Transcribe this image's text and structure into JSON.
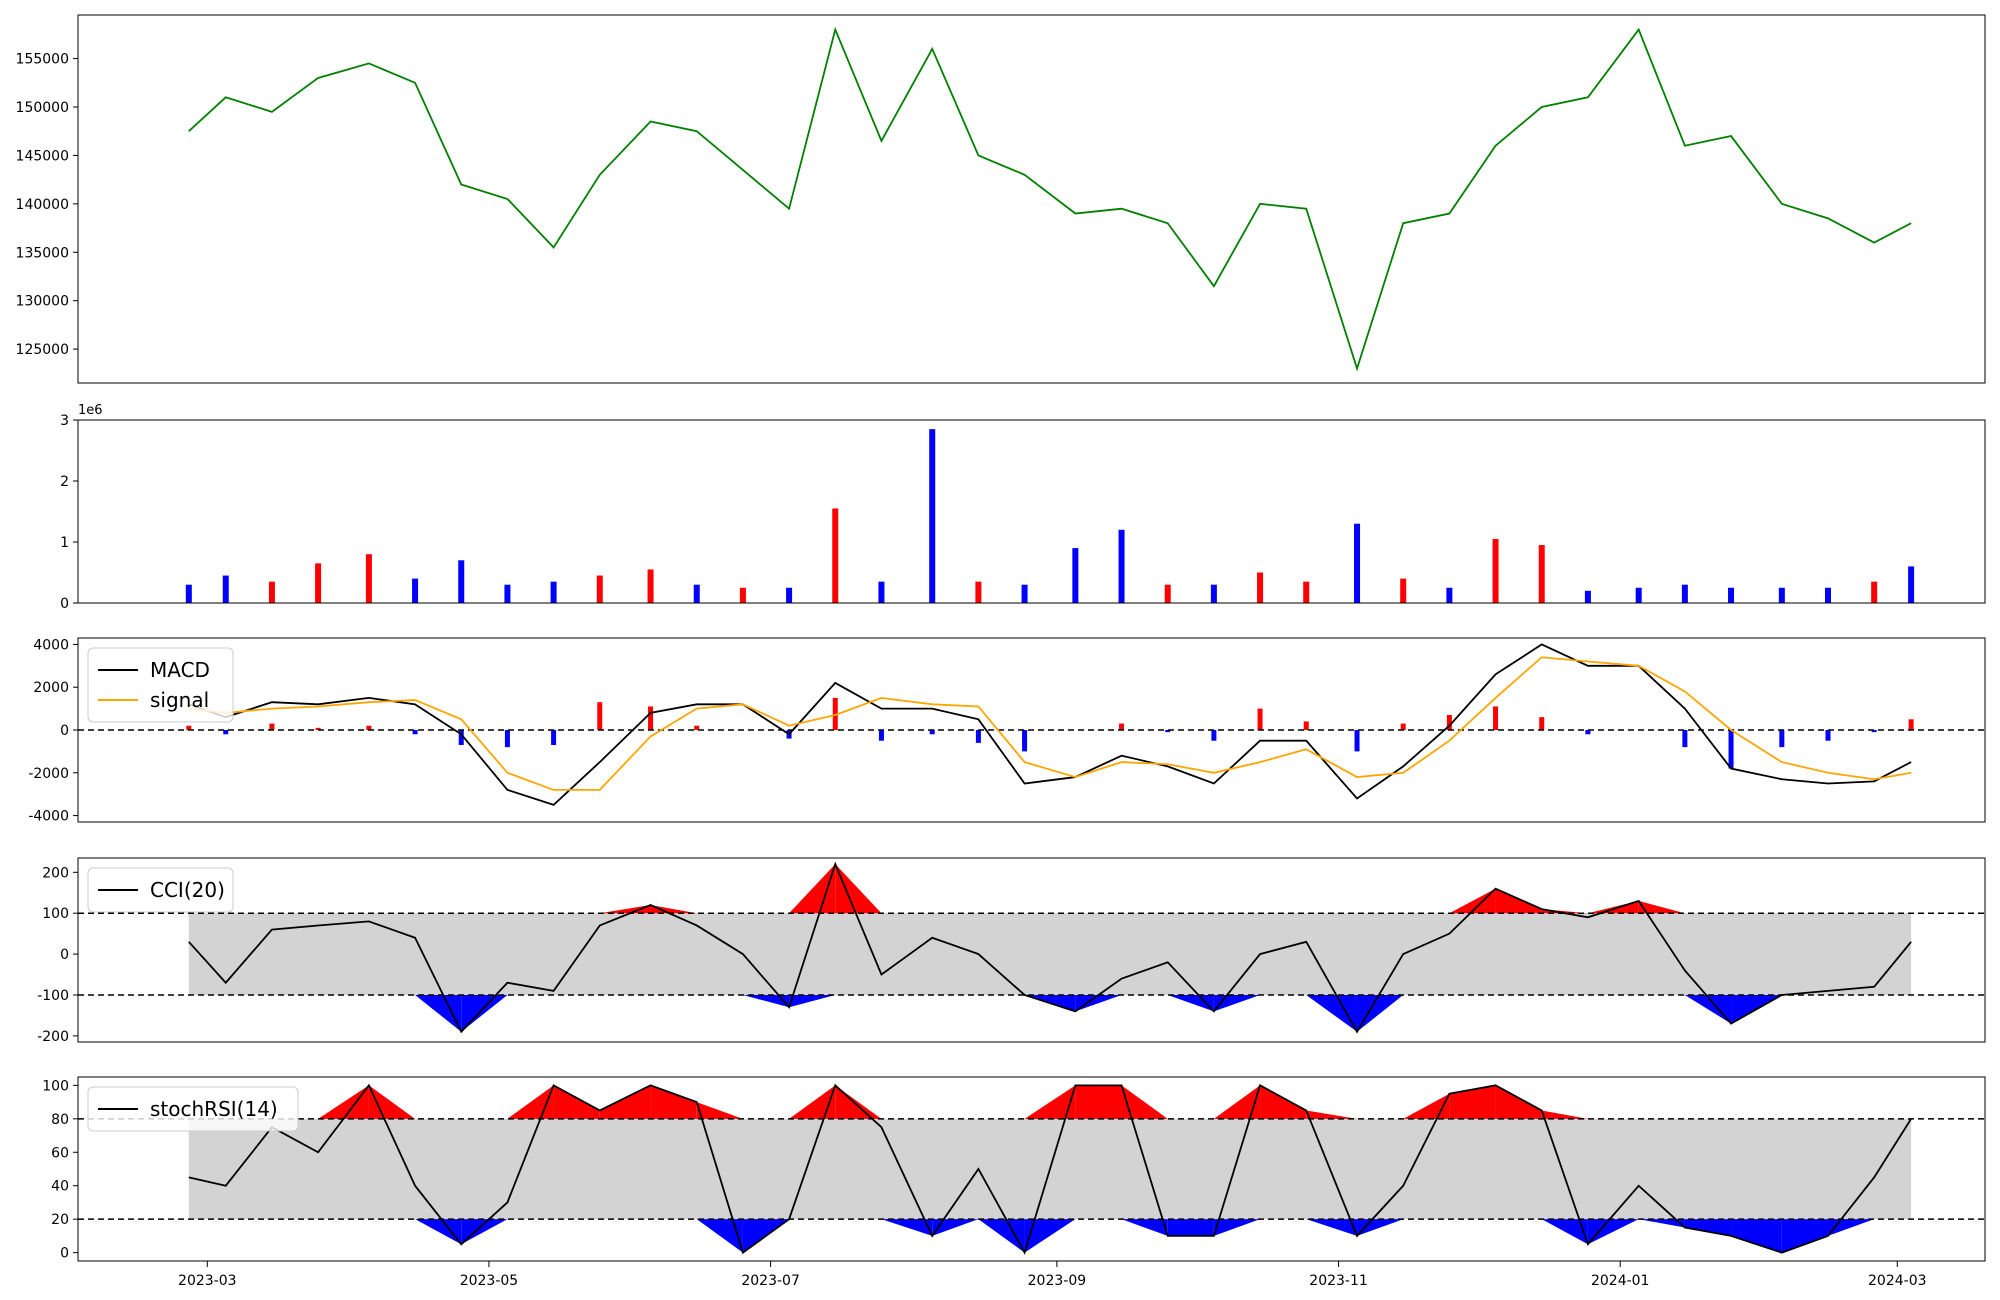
{
  "chart_data": [
    {
      "panel": "price",
      "type": "line",
      "ylim": [
        121500,
        159500
      ],
      "yticks": [
        125000,
        130000,
        135000,
        140000,
        145000,
        150000,
        155000
      ],
      "color": "#008000",
      "x": [
        "2023-02-25",
        "2023-03-05",
        "2023-03-15",
        "2023-03-25",
        "2023-04-05",
        "2023-04-15",
        "2023-04-25",
        "2023-05-05",
        "2023-05-15",
        "2023-05-25",
        "2023-06-05",
        "2023-06-15",
        "2023-06-25",
        "2023-07-05",
        "2023-07-15",
        "2023-07-25",
        "2023-08-05",
        "2023-08-15",
        "2023-08-25",
        "2023-09-05",
        "2023-09-15",
        "2023-09-25",
        "2023-10-05",
        "2023-10-15",
        "2023-10-25",
        "2023-11-05",
        "2023-11-15",
        "2023-11-25",
        "2023-12-05",
        "2023-12-15",
        "2023-12-25",
        "2024-01-05",
        "2024-01-15",
        "2024-01-25",
        "2024-02-05",
        "2024-02-15",
        "2024-02-25",
        "2024-03-04"
      ],
      "values": [
        147500,
        151000,
        149500,
        153000,
        154500,
        152500,
        142000,
        140500,
        135500,
        143000,
        148500,
        147500,
        143500,
        139500,
        158000,
        146500,
        156000,
        145000,
        143000,
        139000,
        139500,
        138000,
        131500,
        140000,
        139500,
        123000,
        138000,
        139000,
        146000,
        150000,
        151000,
        158000,
        146000,
        147000,
        140000,
        138500,
        136000,
        138000
      ]
    },
    {
      "panel": "volume",
      "type": "bar",
      "ylim": [
        0,
        3000000
      ],
      "yticks": [
        0,
        1,
        2,
        3
      ],
      "offset_label": "1e6",
      "colors": {
        "up": "#ff0000",
        "down": "#0000ff"
      },
      "x": [
        "2023-02-25",
        "2023-03-05",
        "2023-03-15",
        "2023-03-25",
        "2023-04-05",
        "2023-04-15",
        "2023-04-25",
        "2023-05-05",
        "2023-05-15",
        "2023-05-25",
        "2023-06-05",
        "2023-06-15",
        "2023-06-25",
        "2023-07-05",
        "2023-07-15",
        "2023-07-25",
        "2023-08-05",
        "2023-08-15",
        "2023-08-25",
        "2023-09-05",
        "2023-09-15",
        "2023-09-25",
        "2023-10-05",
        "2023-10-15",
        "2023-10-25",
        "2023-11-05",
        "2023-11-15",
        "2023-11-25",
        "2023-12-05",
        "2023-12-15",
        "2023-12-25",
        "2024-01-05",
        "2024-01-15",
        "2024-01-25",
        "2024-02-05",
        "2024-02-15",
        "2024-02-25",
        "2024-03-04"
      ],
      "values": [
        300000,
        450000,
        350000,
        650000,
        800000,
        400000,
        700000,
        300000,
        350000,
        450000,
        550000,
        300000,
        250000,
        250000,
        1550000,
        350000,
        2850000,
        350000,
        300000,
        900000,
        1200000,
        300000,
        300000,
        500000,
        350000,
        1300000,
        400000,
        250000,
        1050000,
        950000,
        200000,
        250000,
        300000,
        250000,
        250000,
        250000,
        350000,
        600000
      ],
      "directions": [
        "down",
        "down",
        "up",
        "up",
        "up",
        "down",
        "down",
        "down",
        "down",
        "up",
        "up",
        "down",
        "up",
        "down",
        "up",
        "down",
        "down",
        "up",
        "down",
        "down",
        "down",
        "up",
        "down",
        "up",
        "up",
        "down",
        "up",
        "down",
        "up",
        "up",
        "down",
        "down",
        "down",
        "down",
        "down",
        "down",
        "up",
        "down"
      ]
    },
    {
      "panel": "macd",
      "type": "line",
      "ylim": [
        -4300,
        4300
      ],
      "yticks": [
        -4000,
        -2000,
        0,
        2000,
        4000
      ],
      "reference_lines": [
        0
      ],
      "x": [
        "2023-02-25",
        "2023-03-05",
        "2023-03-15",
        "2023-03-25",
        "2023-04-05",
        "2023-04-15",
        "2023-04-25",
        "2023-05-05",
        "2023-05-15",
        "2023-05-25",
        "2023-06-05",
        "2023-06-15",
        "2023-06-25",
        "2023-07-05",
        "2023-07-15",
        "2023-07-25",
        "2023-08-05",
        "2023-08-15",
        "2023-08-25",
        "2023-09-05",
        "2023-09-15",
        "2023-09-25",
        "2023-10-05",
        "2023-10-15",
        "2023-10-25",
        "2023-11-05",
        "2023-11-15",
        "2023-11-25",
        "2023-12-05",
        "2023-12-15",
        "2023-12-25",
        "2024-01-05",
        "2024-01-15",
        "2024-01-25",
        "2024-02-05",
        "2024-02-15",
        "2024-02-25",
        "2024-03-04"
      ],
      "series": [
        {
          "name": "MACD",
          "color": "#000000",
          "values": [
            1200,
            600,
            1300,
            1200,
            1500,
            1200,
            -200,
            -2800,
            -3500,
            -1500,
            800,
            1200,
            1200,
            -200,
            2200,
            1000,
            1000,
            500,
            -2500,
            -2200,
            -1200,
            -1700,
            -2500,
            -500,
            -500,
            -3200,
            -1700,
            200,
            2600,
            4000,
            3000,
            3000,
            1000,
            -1800,
            -2300,
            -2500,
            -2400,
            -1500
          ]
        },
        {
          "name": "signal",
          "color": "#ffa500",
          "values": [
            1000,
            800,
            1000,
            1100,
            1300,
            1400,
            500,
            -2000,
            -2800,
            -2800,
            -300,
            1000,
            1200,
            200,
            700,
            1500,
            1200,
            1100,
            -1500,
            -2200,
            -1500,
            -1600,
            -2000,
            -1500,
            -900,
            -2200,
            -2000,
            -500,
            1500,
            3400,
            3200,
            3000,
            1800,
            0,
            -1500,
            -2000,
            -2300,
            -2000
          ]
        },
        {
          "name": "histogram",
          "color": "#808080",
          "values": [
            200,
            -200,
            300,
            100,
            200,
            -200,
            -700,
            -800,
            -700,
            1300,
            1100,
            200,
            0,
            -400,
            1500,
            -500,
            -200,
            -600,
            -1000,
            0,
            300,
            -100,
            -500,
            1000,
            400,
            -1000,
            300,
            700,
            1100,
            600,
            -200,
            0,
            -800,
            -1800,
            -800,
            -500,
            -100,
            500
          ]
        }
      ],
      "legend": "top-left"
    },
    {
      "panel": "cci",
      "type": "line",
      "ylim": [
        -215,
        235
      ],
      "yticks": [
        -200,
        -100,
        0,
        100,
        200
      ],
      "band": [
        -100,
        100
      ],
      "x": [
        "2023-02-25",
        "2023-03-05",
        "2023-03-15",
        "2023-03-25",
        "2023-04-05",
        "2023-04-15",
        "2023-04-25",
        "2023-05-05",
        "2023-05-15",
        "2023-05-25",
        "2023-06-05",
        "2023-06-15",
        "2023-06-25",
        "2023-07-05",
        "2023-07-15",
        "2023-07-25",
        "2023-08-05",
        "2023-08-15",
        "2023-08-25",
        "2023-09-05",
        "2023-09-15",
        "2023-09-25",
        "2023-10-05",
        "2023-10-15",
        "2023-10-25",
        "2023-11-05",
        "2023-11-15",
        "2023-11-25",
        "2023-12-05",
        "2023-12-15",
        "2023-12-25",
        "2024-01-05",
        "2024-01-15",
        "2024-01-25",
        "2024-02-05",
        "2024-02-15",
        "2024-02-25",
        "2024-03-04"
      ],
      "series": [
        {
          "name": "CCI(20)",
          "color": "#000000",
          "values": [
            30,
            -70,
            60,
            70,
            80,
            40,
            -190,
            -70,
            -90,
            70,
            120,
            70,
            0,
            -130,
            220,
            -50,
            40,
            0,
            -100,
            -140,
            -60,
            -20,
            -140,
            0,
            30,
            -190,
            0,
            50,
            160,
            110,
            90,
            130,
            -40,
            -170,
            -100,
            -90,
            -80,
            30
          ]
        }
      ],
      "legend": "top-left"
    },
    {
      "panel": "stochrsi",
      "type": "line",
      "ylim": [
        -5,
        105
      ],
      "yticks": [
        0,
        20,
        40,
        60,
        80,
        100
      ],
      "band": [
        20,
        80
      ],
      "x": [
        "2023-02-25",
        "2023-03-05",
        "2023-03-15",
        "2023-03-25",
        "2023-04-05",
        "2023-04-15",
        "2023-04-25",
        "2023-05-05",
        "2023-05-15",
        "2023-05-25",
        "2023-06-05",
        "2023-06-15",
        "2023-06-25",
        "2023-07-05",
        "2023-07-15",
        "2023-07-25",
        "2023-08-05",
        "2023-08-15",
        "2023-08-25",
        "2023-09-05",
        "2023-09-15",
        "2023-09-25",
        "2023-10-05",
        "2023-10-15",
        "2023-10-25",
        "2023-11-05",
        "2023-11-15",
        "2023-11-25",
        "2023-12-05",
        "2023-12-15",
        "2023-12-25",
        "2024-01-05",
        "2024-01-15",
        "2024-01-25",
        "2024-02-05",
        "2024-02-15",
        "2024-02-25",
        "2024-03-04"
      ],
      "series": [
        {
          "name": "stochRSI(14)",
          "color": "#000000",
          "values": [
            45,
            40,
            75,
            60,
            100,
            40,
            5,
            30,
            100,
            85,
            100,
            90,
            0,
            20,
            100,
            75,
            10,
            50,
            0,
            100,
            100,
            10,
            10,
            100,
            85,
            10,
            40,
            95,
            100,
            85,
            5,
            40,
            15,
            10,
            0,
            10,
            45,
            80
          ]
        }
      ],
      "legend": "top-left"
    }
  ],
  "x_axis": {
    "ticks": [
      "2023-03",
      "2023-05",
      "2023-07",
      "2023-09",
      "2023-11",
      "2024-01",
      "2024-03"
    ]
  }
}
